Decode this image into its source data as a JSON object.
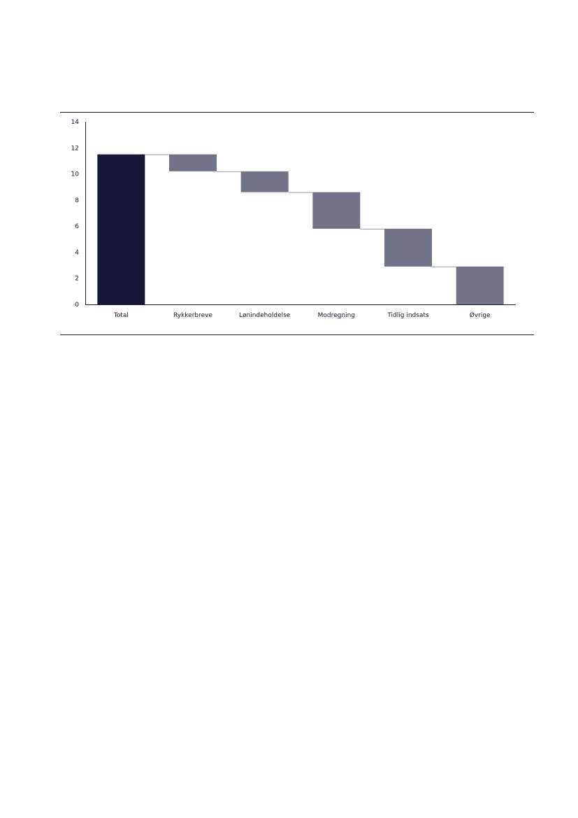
{
  "chart_data": {
    "type": "bar",
    "subtype": "waterfall",
    "categories": [
      "Total",
      "Rykkerbreve",
      "Lønindeholdelse",
      "Modregning",
      "Tidlig indsats",
      "Øvrige"
    ],
    "title": "",
    "xlabel": "",
    "ylabel": "",
    "ylim": [
      0,
      14
    ],
    "yticks": [
      0,
      2,
      4,
      6,
      8,
      10,
      12,
      14
    ],
    "grid": false,
    "legend": "none",
    "bars": [
      {
        "category": "Total",
        "start": 0,
        "end": 11.5,
        "kind": "total"
      },
      {
        "category": "Rykkerbreve",
        "start": 10.2,
        "end": 11.5,
        "kind": "step"
      },
      {
        "category": "Lønindeholdelse",
        "start": 8.6,
        "end": 10.2,
        "kind": "step"
      },
      {
        "category": "Modregning",
        "start": 5.8,
        "end": 8.6,
        "kind": "step"
      },
      {
        "category": "Tidlig indsats",
        "start": 2.9,
        "end": 5.8,
        "kind": "step"
      },
      {
        "category": "Øvrige",
        "start": 0,
        "end": 2.9,
        "kind": "step"
      }
    ],
    "colors": {
      "total": "#161638",
      "step": "#737388",
      "axis": "#1a1a2e",
      "connector": "#9a9aaa"
    }
  }
}
